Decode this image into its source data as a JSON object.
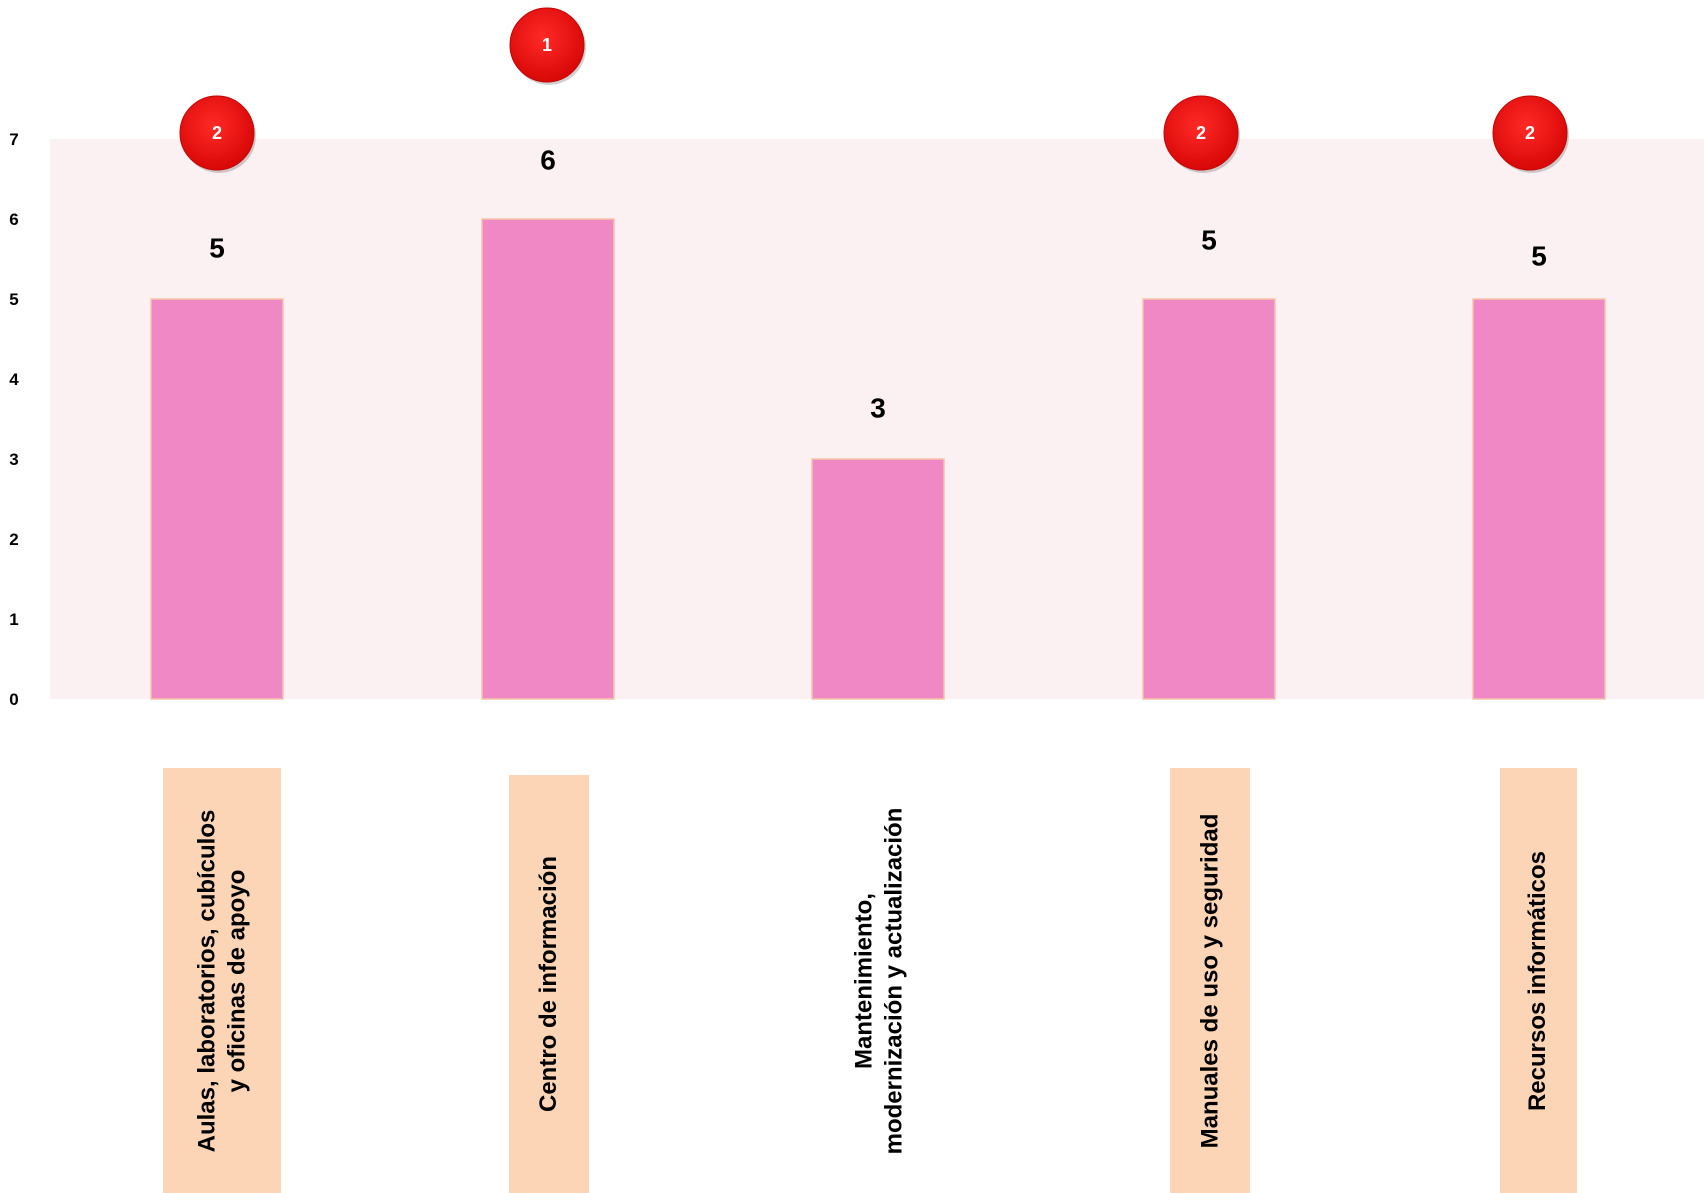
{
  "chart_data": {
    "type": "bar",
    "title": "",
    "xlabel": "",
    "ylabel": "",
    "ylim": [
      0,
      7
    ],
    "yticks": [
      0,
      1,
      2,
      3,
      4,
      5,
      6,
      7
    ],
    "categories": [
      "Aulas, laboratorios, cubículos\ny oficinas de apoyo",
      "Centro de información",
      "Mantenimiento,\nmodernización y actualización",
      "Manuales de uso y seguridad",
      "Recursos informáticos"
    ],
    "values": [
      5,
      6,
      3,
      5,
      5
    ],
    "value_labels": [
      "5",
      "6",
      "3",
      "5",
      "5"
    ],
    "badges": [
      "2",
      "1",
      "",
      "2",
      "2"
    ],
    "grid": false,
    "legend": "none"
  },
  "colors": {
    "bar": "#f088c5",
    "bar_outline": "#f5c4a8",
    "plot_background": "#fcf1f2",
    "category_label_background": "#fbd5b5",
    "badge": "#ee0f12"
  }
}
